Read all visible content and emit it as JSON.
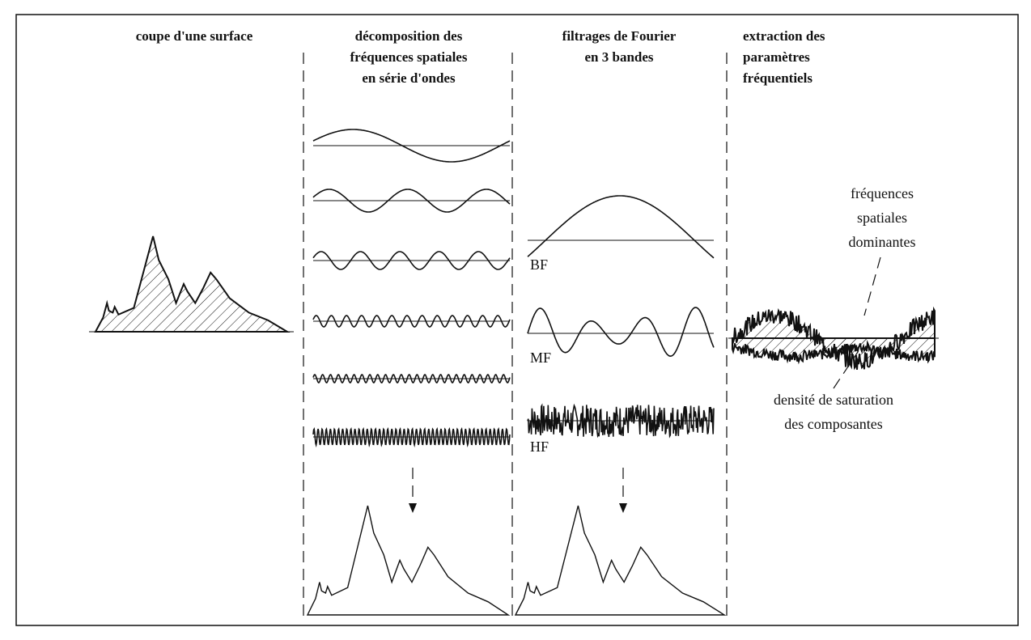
{
  "columns": [
    {
      "heading": [
        "coupe d'une surface"
      ]
    },
    {
      "heading": [
        "décomposition des",
        "fréquences spatiales",
        "en série d'ondes"
      ]
    },
    {
      "heading": [
        "filtrages de Fourier",
        "en 3 bandes"
      ]
    },
    {
      "heading": [
        "extraction   des",
        "paramètres",
        "fréquentiels"
      ]
    }
  ],
  "bands": [
    "BF",
    "MF",
    "HF"
  ],
  "annotations": [
    {
      "lines": [
        "fréquences",
        "spatiales",
        "dominantes"
      ]
    },
    {
      "lines": [
        "densité de saturation",
        "des composantes"
      ]
    }
  ]
}
